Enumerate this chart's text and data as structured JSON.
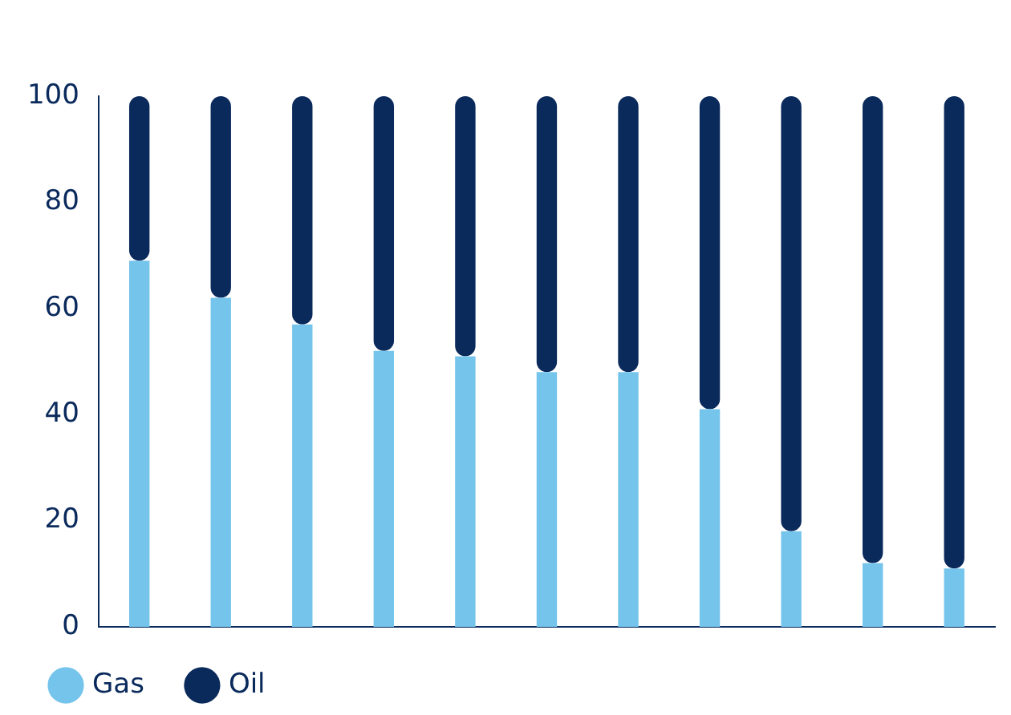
{
  "chart_data": {
    "type": "bar",
    "stacked": true,
    "categories": [
      null,
      null,
      null,
      null,
      null,
      null,
      null,
      null,
      null,
      null,
      null
    ],
    "series": [
      {
        "name": "Gas",
        "color": "#75c4ec",
        "values": [
          69,
          62,
          57,
          52,
          51,
          48,
          48,
          41,
          18,
          12,
          11
        ]
      },
      {
        "name": "Oil",
        "color": "#0a2a5c",
        "values": [
          31,
          38,
          43,
          48,
          49,
          52,
          52,
          59,
          82,
          88,
          89
        ]
      }
    ],
    "ylim": [
      0,
      100
    ],
    "yticks": [
      0,
      20,
      40,
      60,
      80,
      100
    ],
    "grid": false,
    "legend": "bottom left"
  }
}
